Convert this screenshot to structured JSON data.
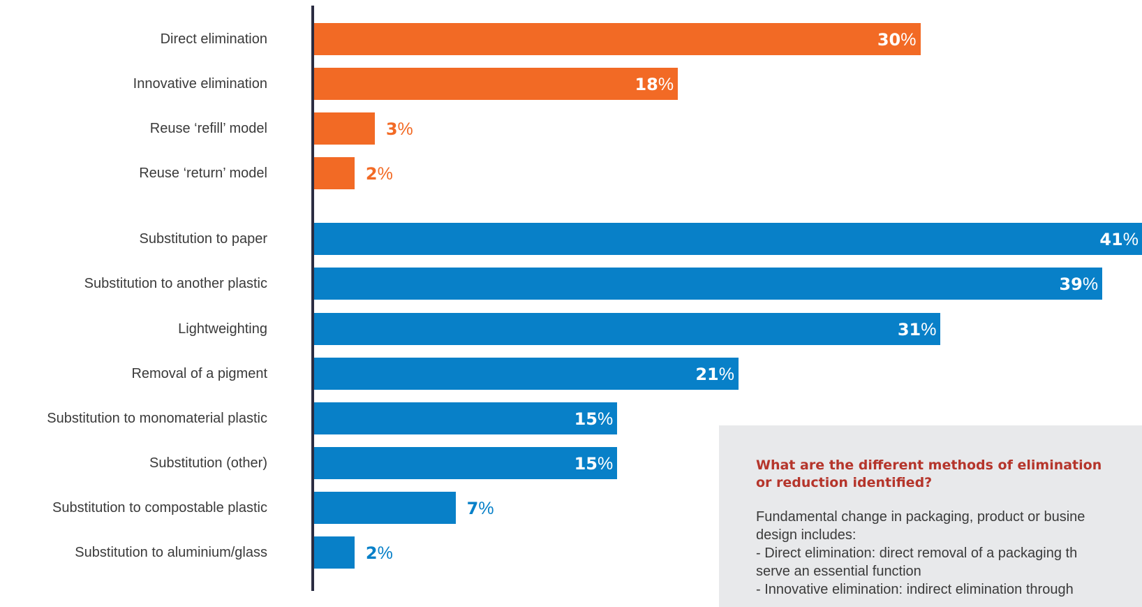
{
  "chart_data": {
    "type": "bar",
    "orientation": "horizontal",
    "categories": [
      "Direct elimination",
      "Innovative elimination",
      "Reuse ‘refill’ model",
      "Reuse ‘return’ model",
      "Substitution to paper",
      "Substitution to another plastic",
      "Lightweighting",
      "Removal of a pigment",
      "Substitution to monomaterial plastic",
      "Substitution (other)",
      "Substitution to compostable plastic",
      "Substitution to aluminium/glass"
    ],
    "values": [
      30,
      18,
      3,
      2,
      41,
      39,
      31,
      21,
      15,
      15,
      7,
      2
    ],
    "value_suffix": "%",
    "groups": [
      {
        "indices": [
          0,
          1,
          2,
          3
        ],
        "color": "#f26a25"
      },
      {
        "indices": [
          4,
          5,
          6,
          7,
          8,
          9,
          10,
          11
        ],
        "color": "#0880c8"
      }
    ],
    "xlim": [
      0,
      41
    ],
    "grid": false,
    "legend": "none",
    "label_color_inside": "#ffffff"
  },
  "info_box": {
    "title_line1": "What are the different methods of elimination",
    "title_line2": "or reduction identified?",
    "body_lines": [
      "Fundamental change in packaging, product or busine",
      "design includes:",
      "- Direct elimination: direct removal of a packaging th",
      "serve an essential function",
      "- Innovative elimination: indirect elimination through"
    ]
  },
  "colors": {
    "orange": "#f26a25",
    "blue": "#0880c8",
    "axis": "#2b2d42",
    "box_bg": "#e8e9eb",
    "box_title": "#b5352b",
    "text": "#3a3a3a"
  }
}
